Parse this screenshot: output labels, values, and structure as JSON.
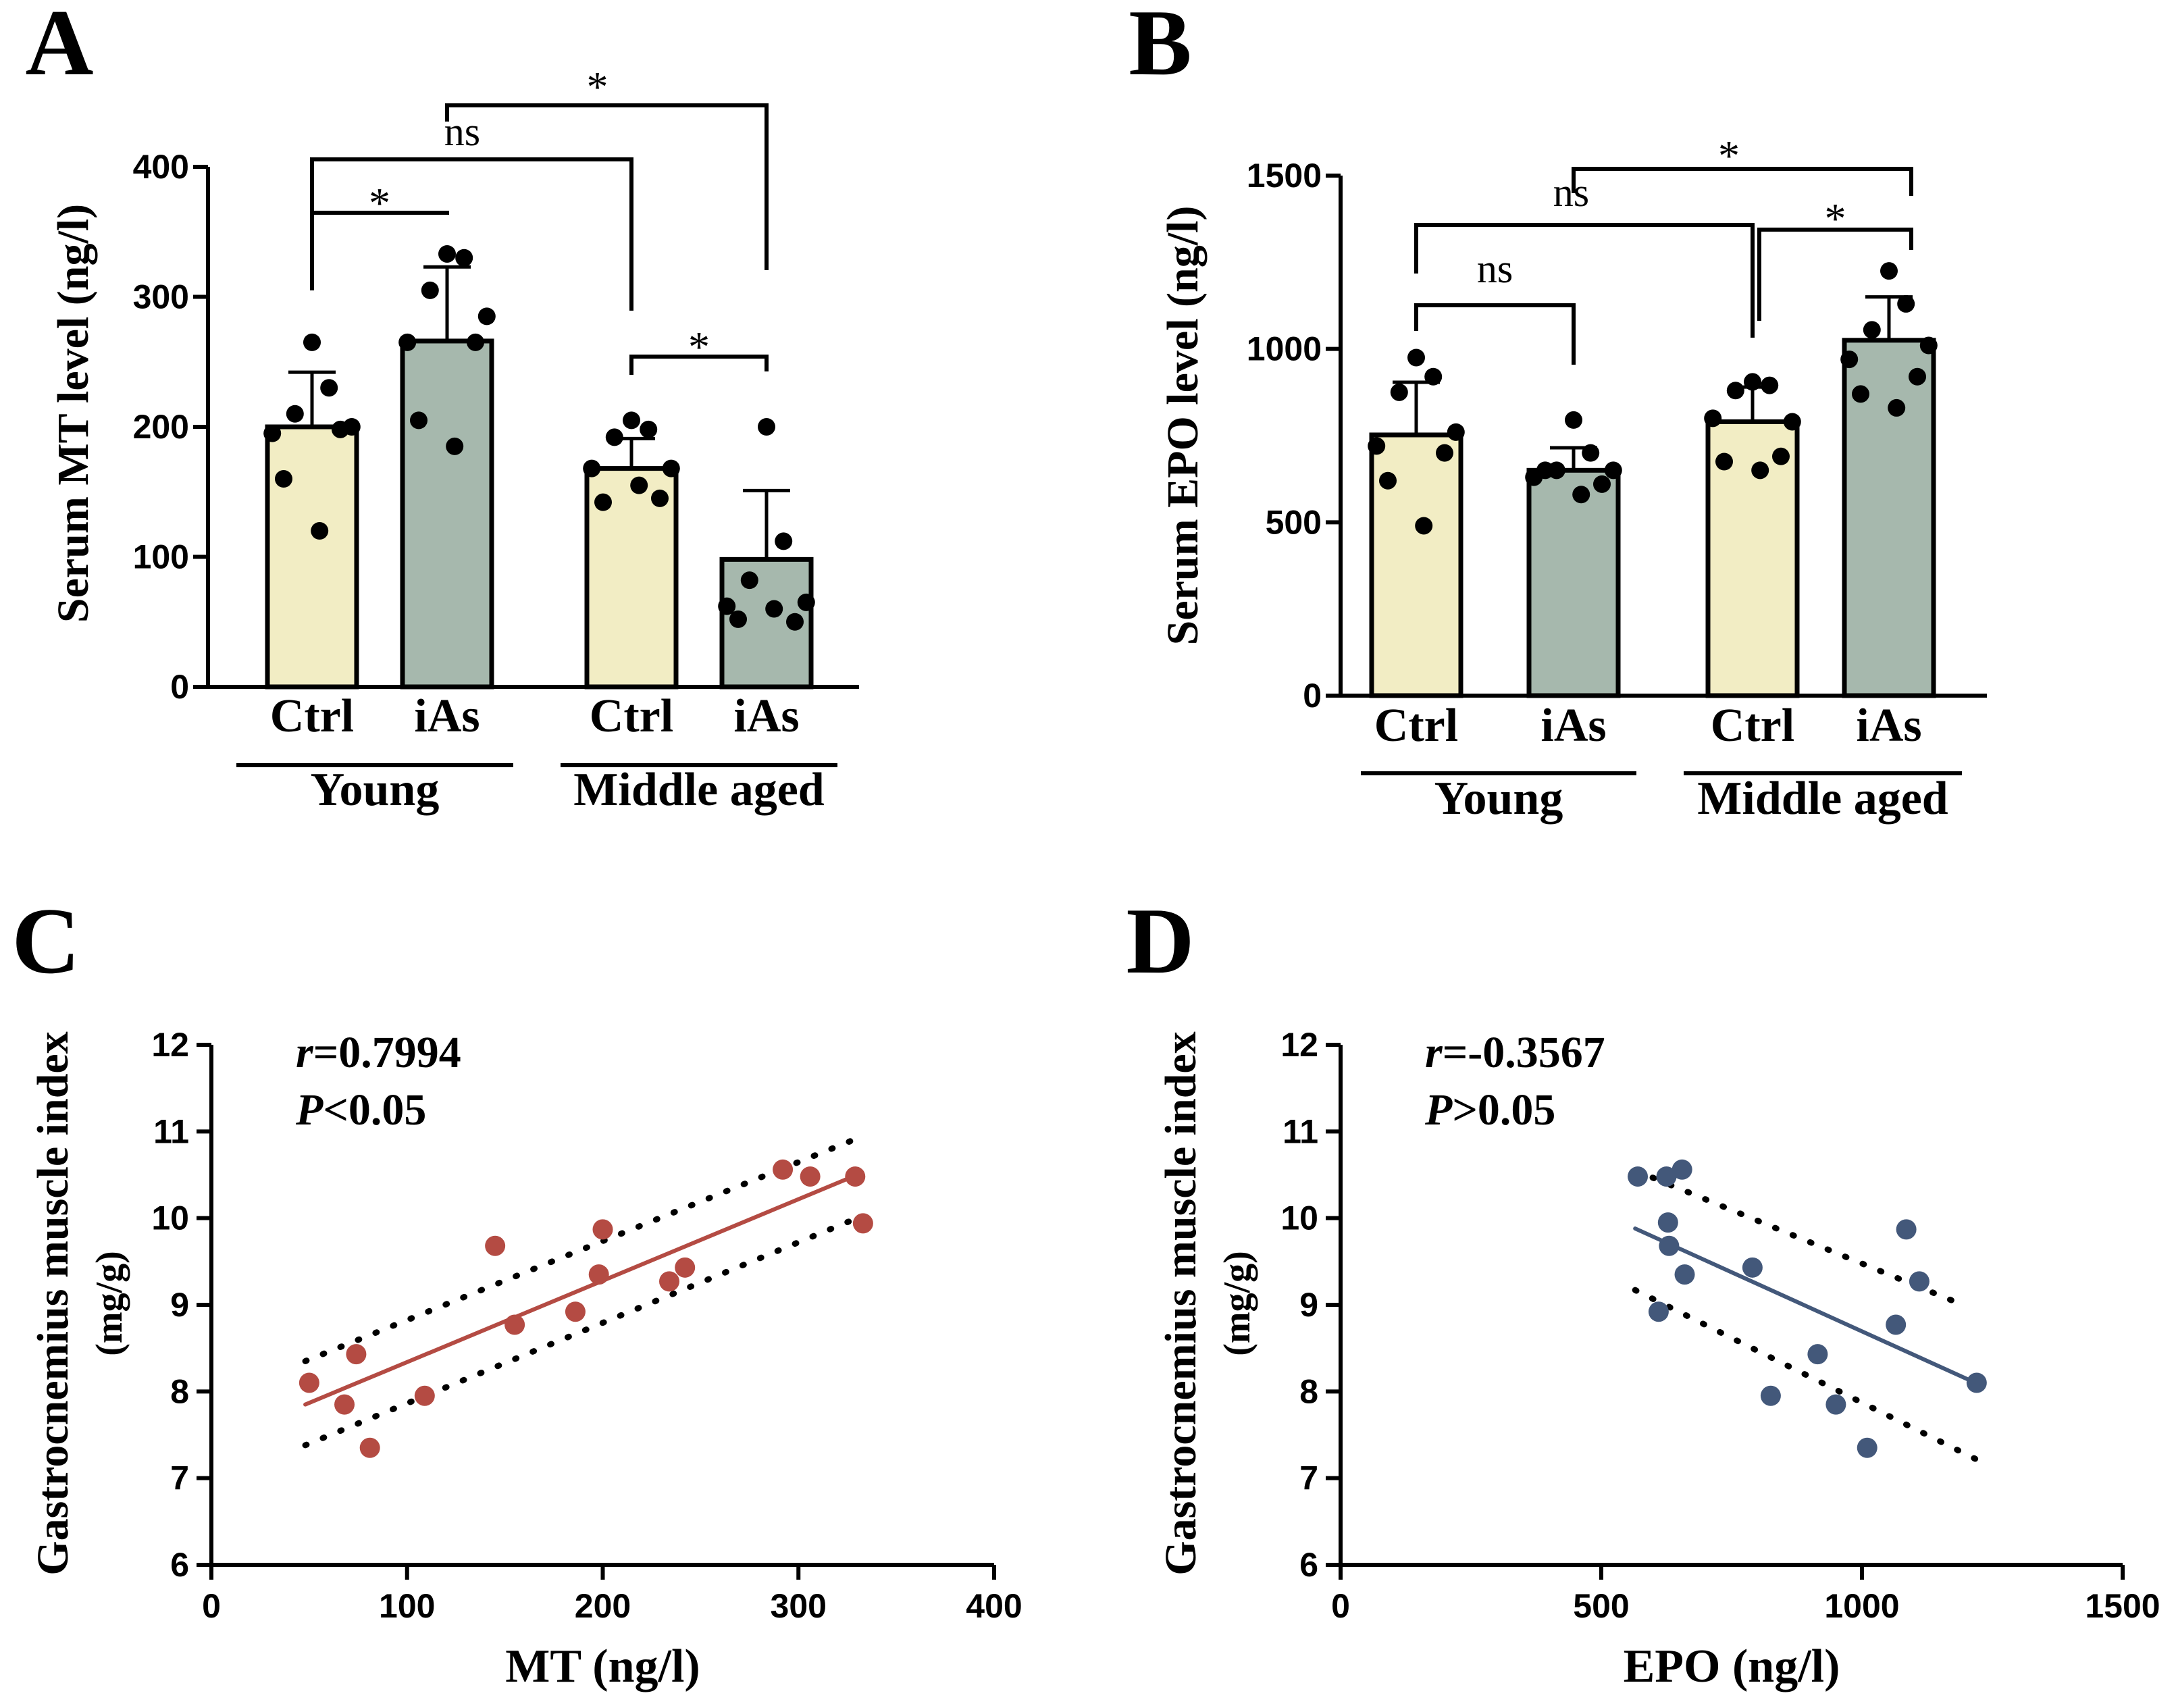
{
  "colors": {
    "ctrl_fill": "#F2EDC4",
    "ias_fill": "#A6B8AD",
    "red": "#B44B43",
    "blue": "#43587A",
    "black": "#000000"
  },
  "chart_data": [
    {
      "panel": "A",
      "type": "bar",
      "ylabel": "Serum MT level (ng/l)",
      "ylim": [
        0,
        400
      ],
      "yticks": [
        "0",
        "100",
        "200",
        "300",
        "400"
      ],
      "groups": [
        {
          "name": "Young",
          "bars": [
            {
              "label": "Ctrl",
              "mean": 200,
              "sd": 42,
              "fill": "ctrl",
              "points": [
                265,
                230,
                210,
                200,
                195,
                198,
                160,
                120
              ]
            },
            {
              "label": "iAs",
              "mean": 266,
              "sd": 57,
              "fill": "ias",
              "points": [
                333,
                330,
                305,
                285,
                265,
                265,
                205,
                185
              ]
            }
          ]
        },
        {
          "name": "Middle aged",
          "bars": [
            {
              "label": "Ctrl",
              "mean": 168,
              "sd": 23,
              "fill": "ctrl",
              "points": [
                205,
                198,
                192,
                168,
                168,
                145,
                142,
                155
              ]
            },
            {
              "label": "iAs",
              "mean": 98,
              "sd": 53,
              "fill": "ias",
              "points": [
                200,
                112,
                82,
                65,
                62,
                50,
                52,
                60
              ]
            }
          ]
        }
      ],
      "comparisons": [
        {
          "from": "Young Ctrl",
          "to": "Young iAs",
          "label": "*"
        },
        {
          "from": "Young Ctrl",
          "to": "Middle aged Ctrl",
          "label": "ns"
        },
        {
          "from": "Young iAs",
          "to": "Middle aged iAs",
          "label": "*"
        },
        {
          "from": "Middle aged Ctrl",
          "to": "Middle aged iAs",
          "label": "*"
        }
      ]
    },
    {
      "panel": "B",
      "type": "bar",
      "ylabel": "Serum EPO level (ng/l)",
      "ylim": [
        0,
        1500
      ],
      "yticks": [
        "0",
        "500",
        "1000",
        "1500"
      ],
      "groups": [
        {
          "name": "Young",
          "bars": [
            {
              "label": "Ctrl",
              "mean": 752,
              "sd": 152,
              "fill": "ctrl",
              "points": [
                975,
                920,
                875,
                760,
                720,
                700,
                620,
                490
              ]
            },
            {
              "label": "iAs",
              "mean": 650,
              "sd": 65,
              "fill": "ias",
              "points": [
                795,
                700,
                650,
                650,
                630,
                610,
                650,
                580
              ]
            }
          ]
        },
        {
          "name": "Middle aged",
          "bars": [
            {
              "label": "Ctrl",
              "mean": 790,
              "sd": 100,
              "fill": "ctrl",
              "points": [
                905,
                895,
                880,
                790,
                800,
                690,
                675,
                650
              ]
            },
            {
              "label": "iAs",
              "mean": 1025,
              "sd": 125,
              "fill": "ias",
              "points": [
                1225,
                1130,
                1055,
                1010,
                970,
                920,
                870,
                830
              ]
            }
          ]
        }
      ],
      "comparisons": [
        {
          "from": "Young Ctrl",
          "to": "Young iAs",
          "label": "ns"
        },
        {
          "from": "Young Ctrl",
          "to": "Middle aged Ctrl",
          "label": "ns"
        },
        {
          "from": "Young iAs",
          "to": "Middle aged iAs",
          "label": "*"
        },
        {
          "from": "Middle aged Ctrl",
          "to": "Middle aged iAs",
          "label": "*"
        }
      ]
    },
    {
      "panel": "C",
      "type": "scatter",
      "xlabel": "MT (ng/l)",
      "ylabel": "Gastrocnemius muscle index",
      "ylabel2": "(mg/g)",
      "xlim": [
        0,
        400
      ],
      "ylim": [
        6,
        12
      ],
      "xticks": [
        "0",
        "100",
        "200",
        "300",
        "400"
      ],
      "yticks": [
        "6",
        "7",
        "8",
        "9",
        "10",
        "11",
        "12"
      ],
      "stat_r": "=0.7994",
      "stat_p": "<0.05",
      "points": [
        [
          50,
          8.1
        ],
        [
          68,
          7.85
        ],
        [
          74,
          8.43
        ],
        [
          81,
          7.35
        ],
        [
          109,
          7.95
        ],
        [
          145,
          9.68
        ],
        [
          155,
          8.77
        ],
        [
          186,
          8.92
        ],
        [
          198,
          9.35
        ],
        [
          200,
          9.87
        ],
        [
          234,
          9.27
        ],
        [
          242,
          9.43
        ],
        [
          292,
          10.56
        ],
        [
          306,
          10.48
        ],
        [
          329,
          10.48
        ],
        [
          333,
          9.94
        ]
      ],
      "fit_line": [
        [
          48,
          7.85
        ],
        [
          330,
          10.5
        ]
      ],
      "ci_upper": [
        [
          48,
          8.35
        ],
        [
          330,
          10.92
        ]
      ],
      "ci_lower": [
        [
          48,
          7.38
        ],
        [
          330,
          10.0
        ]
      ]
    },
    {
      "panel": "D",
      "type": "scatter",
      "xlabel": "EPO (ng/l)",
      "ylabel": "Gastrocnemius muscle index",
      "ylabel2": "(mg/g)",
      "xlim": [
        0,
        1500
      ],
      "ylim": [
        6,
        12
      ],
      "xticks": [
        "0",
        "500",
        "1000",
        "1500"
      ],
      "yticks": [
        "6",
        "7",
        "8",
        "9",
        "10",
        "11",
        "12"
      ],
      "stat_r": "=-0.3567",
      "stat_p": ">0.05",
      "points": [
        [
          570,
          10.48
        ],
        [
          610,
          8.92
        ],
        [
          625,
          10.48
        ],
        [
          628,
          9.95
        ],
        [
          630,
          9.68
        ],
        [
          655,
          10.56
        ],
        [
          660,
          9.35
        ],
        [
          790,
          9.43
        ],
        [
          825,
          7.95
        ],
        [
          915,
          8.43
        ],
        [
          950,
          7.85
        ],
        [
          1010,
          7.35
        ],
        [
          1065,
          8.77
        ],
        [
          1085,
          9.87
        ],
        [
          1110,
          9.27
        ],
        [
          1220,
          8.1
        ]
      ],
      "fit_line": [
        [
          565,
          9.88
        ],
        [
          1225,
          8.08
        ]
      ],
      "ci_upper": [
        [
          565,
          10.55
        ],
        [
          1185,
          9.02
        ]
      ],
      "ci_lower": [
        [
          565,
          9.17
        ],
        [
          1225,
          7.2
        ]
      ]
    }
  ],
  "panel_labels": [
    "A",
    "B",
    "C",
    "D"
  ]
}
